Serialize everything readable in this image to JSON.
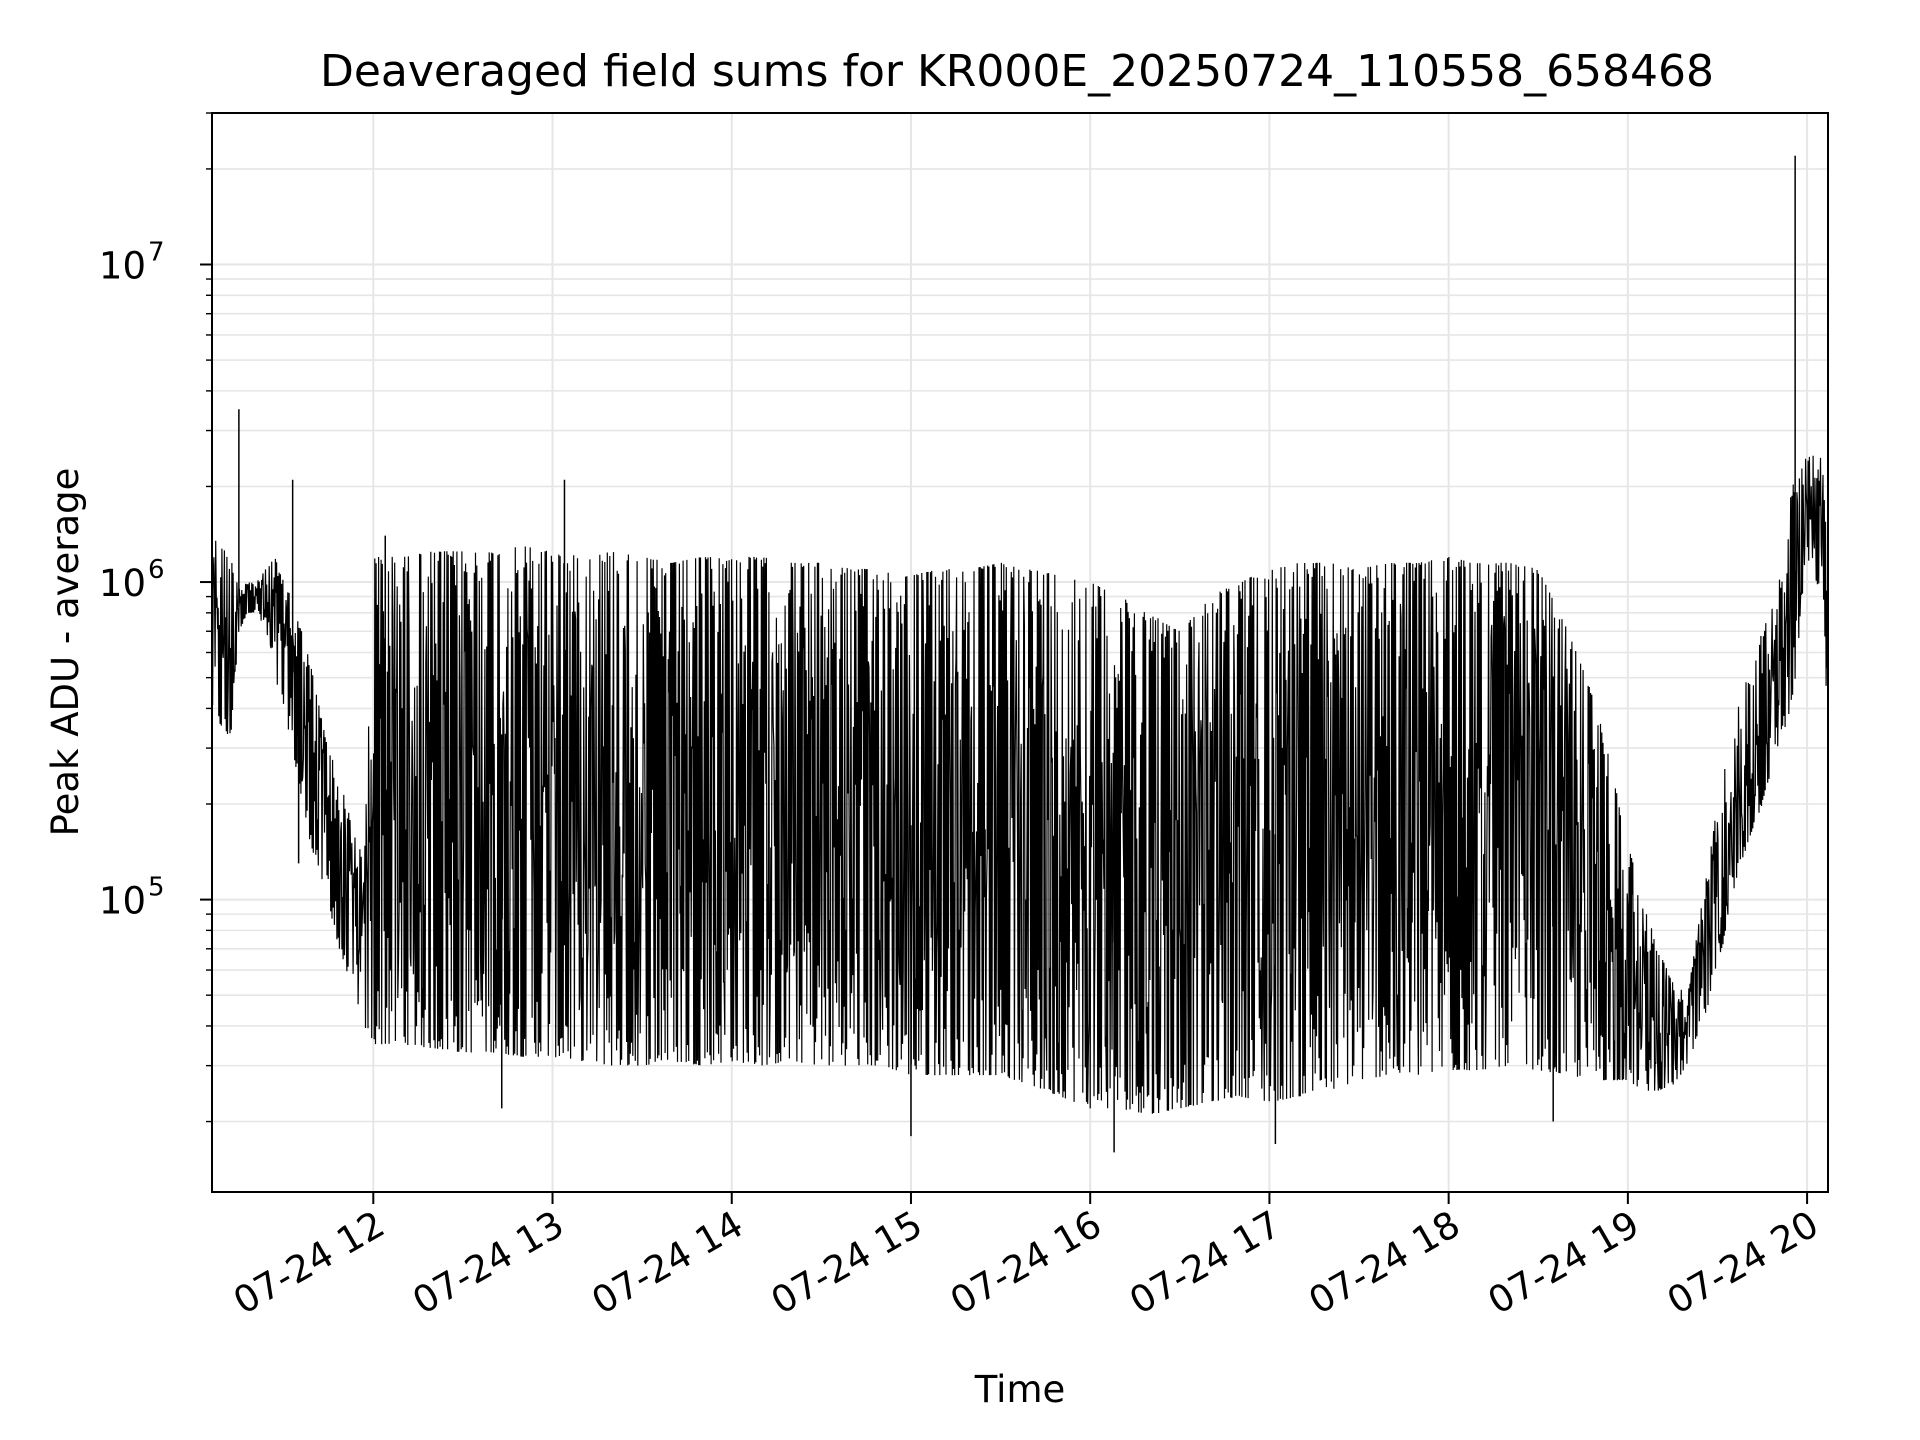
{
  "chart_data": {
    "type": "line",
    "title": "Deaveraged field sums for KR000E_20250724_110558_658468",
    "xlabel": "Time",
    "ylabel": "Peak ADU - average",
    "yscale": "log",
    "grid": true,
    "xlim": [
      "2025-07-24T11:06",
      "2025-07-24T20:07"
    ],
    "ylim": [
      12000,
      30000000
    ],
    "x_ticks": [
      {
        "value": "2025-07-24T12:00",
        "label": "07-24 12"
      },
      {
        "value": "2025-07-24T13:00",
        "label": "07-24 13"
      },
      {
        "value": "2025-07-24T14:00",
        "label": "07-24 14"
      },
      {
        "value": "2025-07-24T15:00",
        "label": "07-24 15"
      },
      {
        "value": "2025-07-24T16:00",
        "label": "07-24 16"
      },
      {
        "value": "2025-07-24T17:00",
        "label": "07-24 17"
      },
      {
        "value": "2025-07-24T18:00",
        "label": "07-24 18"
      },
      {
        "value": "2025-07-24T19:00",
        "label": "07-24 19"
      },
      {
        "value": "2025-07-24T20:00",
        "label": "07-24 20"
      }
    ],
    "y_ticks": [
      {
        "value": 100000,
        "base": "10",
        "exp": "5"
      },
      {
        "value": 1000000,
        "base": "10",
        "exp": "6"
      },
      {
        "value": 10000000,
        "base": "10",
        "exp": "7"
      }
    ],
    "series": [
      {
        "color": "#000000",
        "x": [
          "2025-07-24T11:06",
          "2025-07-24T11:09",
          "2025-07-24T11:12",
          "2025-07-24T11:15",
          "2025-07-24T11:18",
          "2025-07-24T11:21",
          "2025-07-24T11:24",
          "2025-07-24T11:27",
          "2025-07-24T11:30",
          "2025-07-24T11:33",
          "2025-07-24T11:36",
          "2025-07-24T11:39",
          "2025-07-24T11:42",
          "2025-07-24T11:45",
          "2025-07-24T11:48",
          "2025-07-24T11:51",
          "2025-07-24T11:54",
          "2025-07-24T11:57",
          "2025-07-24T12:00",
          "2025-07-24T12:10",
          "2025-07-24T12:20",
          "2025-07-24T12:30",
          "2025-07-24T12:40",
          "2025-07-24T12:50",
          "2025-07-24T13:00",
          "2025-07-24T13:10",
          "2025-07-24T13:20",
          "2025-07-24T13:30",
          "2025-07-24T13:40",
          "2025-07-24T13:50",
          "2025-07-24T14:00",
          "2025-07-24T14:10",
          "2025-07-24T14:20",
          "2025-07-24T14:30",
          "2025-07-24T14:40",
          "2025-07-24T14:50",
          "2025-07-24T15:00",
          "2025-07-24T15:10",
          "2025-07-24T15:20",
          "2025-07-24T15:30",
          "2025-07-24T15:40",
          "2025-07-24T15:50",
          "2025-07-24T16:00",
          "2025-07-24T16:10",
          "2025-07-24T16:20",
          "2025-07-24T16:30",
          "2025-07-24T16:40",
          "2025-07-24T16:50",
          "2025-07-24T17:00",
          "2025-07-24T17:10",
          "2025-07-24T17:20",
          "2025-07-24T17:30",
          "2025-07-24T17:40",
          "2025-07-24T17:50",
          "2025-07-24T18:00",
          "2025-07-24T18:10",
          "2025-07-24T18:20",
          "2025-07-24T18:30",
          "2025-07-24T18:40",
          "2025-07-24T18:50",
          "2025-07-24T19:00",
          "2025-07-24T19:05",
          "2025-07-24T19:10",
          "2025-07-24T19:15",
          "2025-07-24T19:20",
          "2025-07-24T19:25",
          "2025-07-24T19:30",
          "2025-07-24T19:35",
          "2025-07-24T19:40",
          "2025-07-24T19:45",
          "2025-07-24T19:50",
          "2025-07-24T19:55",
          "2025-07-24T20:00",
          "2025-07-24T20:05",
          "2025-07-24T20:07"
        ],
        "min": [
          400000,
          350000,
          300000,
          700000,
          800000,
          800000,
          700000,
          500000,
          400000,
          300000,
          200000,
          150000,
          120000,
          100000,
          70000,
          60000,
          50000,
          40000,
          35000,
          35000,
          34000,
          33000,
          33000,
          32000,
          32000,
          31000,
          30000,
          30000,
          31000,
          30000,
          31000,
          30000,
          31000,
          30000,
          30000,
          30000,
          28000,
          28000,
          28000,
          28000,
          26000,
          24000,
          22000,
          22000,
          21000,
          22000,
          23000,
          24000,
          23000,
          24000,
          25000,
          27000,
          28000,
          28000,
          29000,
          29000,
          30000,
          29000,
          28000,
          27000,
          27000,
          25000,
          25000,
          26000,
          30000,
          40000,
          60000,
          100000,
          150000,
          200000,
          300000,
          400000,
          1200000,
          900000,
          350000
        ],
        "max": [
          1400000,
          1300000,
          1200000,
          1000000,
          1000000,
          1000000,
          1100000,
          1200000,
          1000000,
          900000,
          700000,
          550000,
          400000,
          300000,
          250000,
          200000,
          160000,
          130000,
          1200000,
          1200000,
          1250000,
          1250000,
          1250000,
          1300000,
          1250000,
          1200000,
          1250000,
          1200000,
          1150000,
          1200000,
          1200000,
          1200000,
          1150000,
          1150000,
          1100000,
          1100000,
          1050000,
          1100000,
          1100000,
          1150000,
          1100000,
          1050000,
          1000000,
          900000,
          800000,
          700000,
          900000,
          1000000,
          1100000,
          1150000,
          1150000,
          1100000,
          1150000,
          1150000,
          1200000,
          1150000,
          1150000,
          1100000,
          700000,
          400000,
          150000,
          100000,
          70000,
          55000,
          50000,
          100000,
          200000,
          350000,
          500000,
          700000,
          900000,
          2000000,
          2500000,
          2500000,
          1100000
        ],
        "spikes": [
          {
            "x": "2025-07-24T11:15",
            "y": 3500000
          },
          {
            "x": "2025-07-24T11:33",
            "y": 2100000
          },
          {
            "x": "2025-07-24T11:35",
            "y": 130000
          },
          {
            "x": "2025-07-24T12:04",
            "y": 1400000
          },
          {
            "x": "2025-07-24T12:43",
            "y": 22000
          },
          {
            "x": "2025-07-24T13:04",
            "y": 2100000
          },
          {
            "x": "2025-07-24T15:00",
            "y": 18000
          },
          {
            "x": "2025-07-24T16:08",
            "y": 16000
          },
          {
            "x": "2025-07-24T17:02",
            "y": 17000
          },
          {
            "x": "2025-07-24T18:35",
            "y": 20000
          },
          {
            "x": "2025-07-24T19:56",
            "y": 22000000
          }
        ]
      }
    ]
  }
}
